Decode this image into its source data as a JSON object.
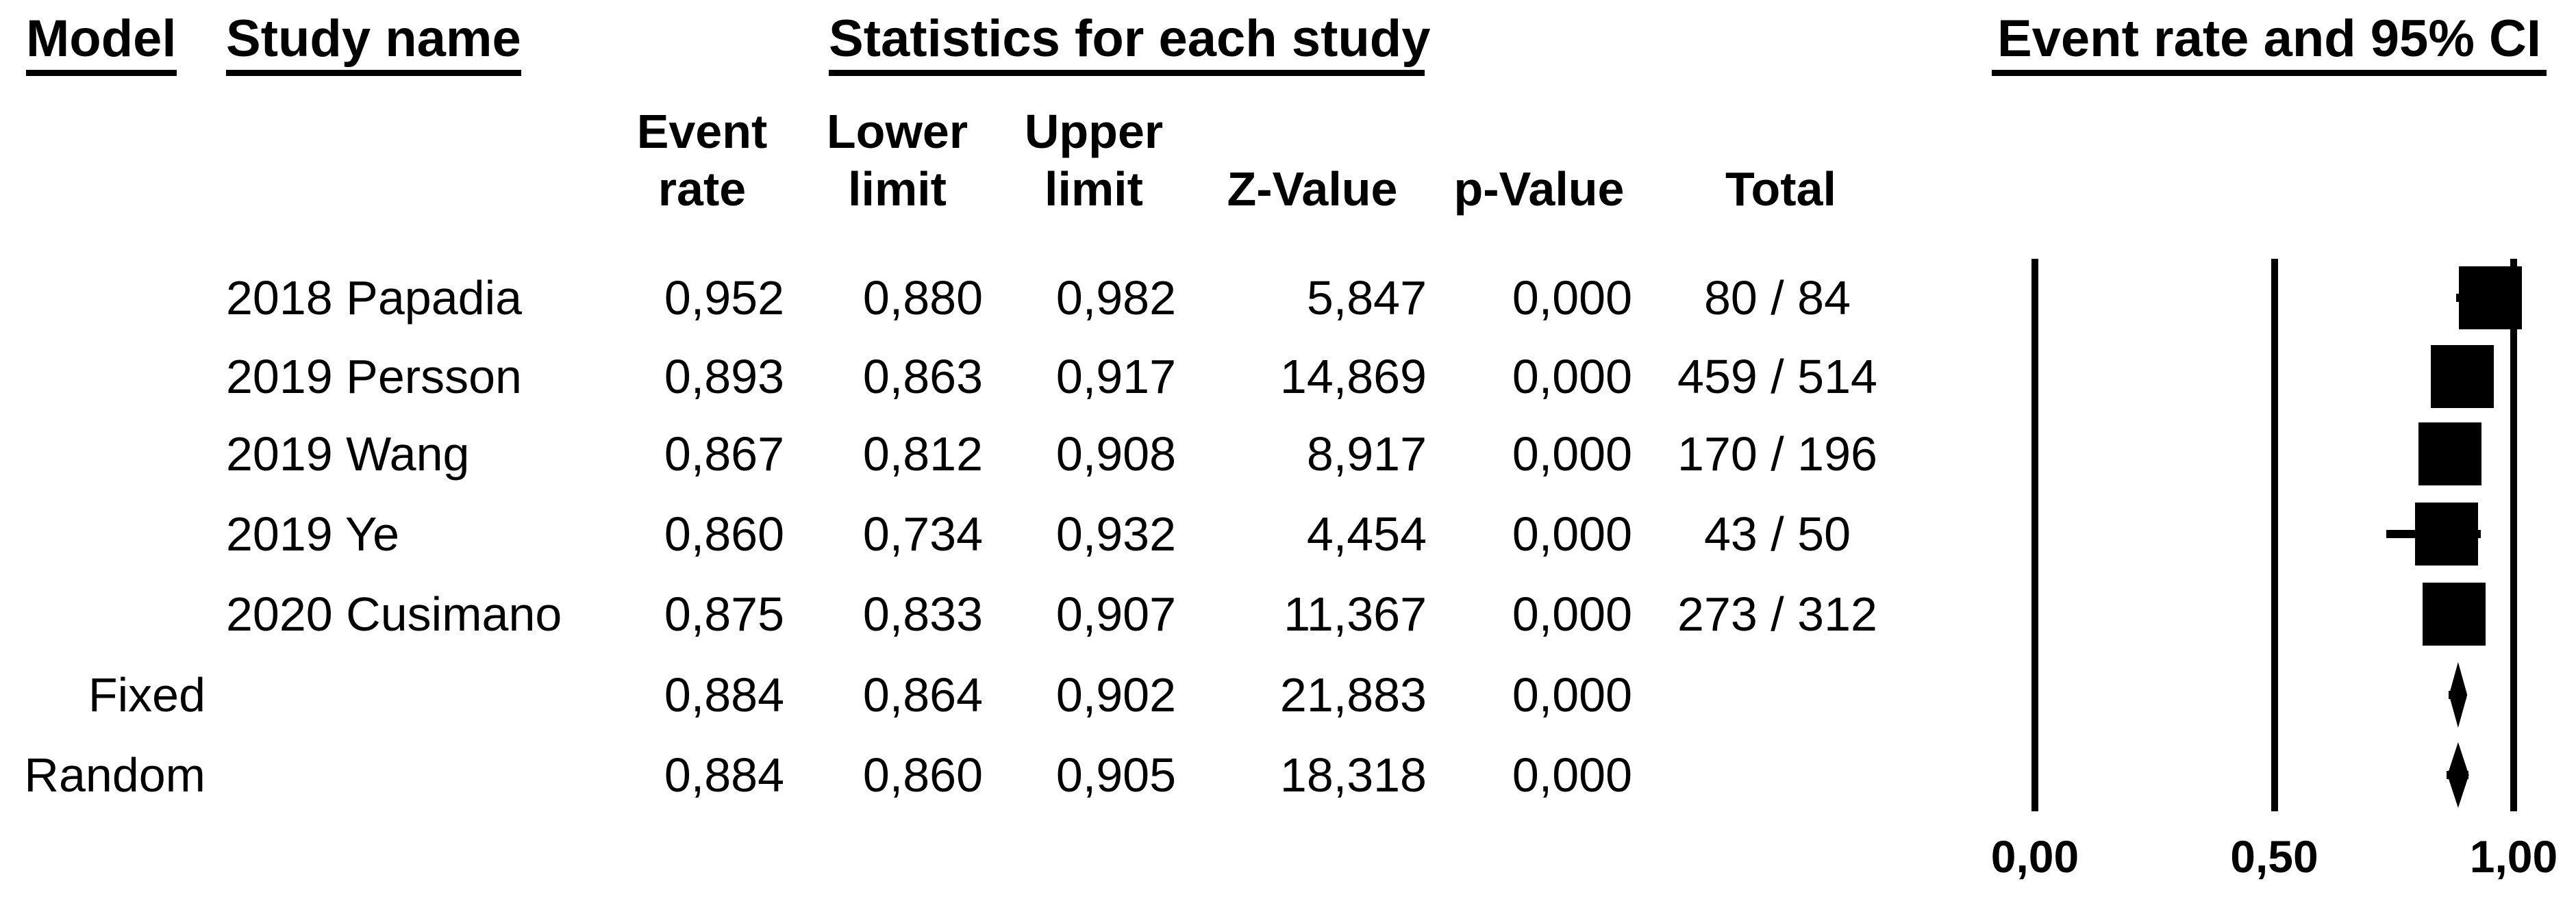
{
  "header": {
    "model": "Model",
    "study_name": "Study name",
    "statistics": "Statistics for each study",
    "event_rate_ci": "Event rate and 95% CI"
  },
  "columns": {
    "event_line1": "Event",
    "event_line2": "rate",
    "lower_line1": "Lower",
    "lower_line2": "limit",
    "upper_line1": "Upper",
    "upper_line2": "limit",
    "z_value": "Z-Value",
    "p_value": "p-Value",
    "total": "Total"
  },
  "rows": [
    {
      "model": "",
      "study": "2018 Papadia",
      "event_rate": "0,952",
      "lower": "0,880",
      "upper": "0,982",
      "z": "5,847",
      "p": "0,000",
      "total": "80 / 84"
    },
    {
      "model": "",
      "study": "2019 Persson",
      "event_rate": "0,893",
      "lower": "0,863",
      "upper": "0,917",
      "z": "14,869",
      "p": "0,000",
      "total": "459 / 514"
    },
    {
      "model": "",
      "study": "2019 Wang",
      "event_rate": "0,867",
      "lower": "0,812",
      "upper": "0,908",
      "z": "8,917",
      "p": "0,000",
      "total": "170 / 196"
    },
    {
      "model": "",
      "study": "2019 Ye",
      "event_rate": "0,860",
      "lower": "0,734",
      "upper": "0,932",
      "z": "4,454",
      "p": "0,000",
      "total": "43 / 50"
    },
    {
      "model": "",
      "study": "2020 Cusimano",
      "event_rate": "0,875",
      "lower": "0,833",
      "upper": "0,907",
      "z": "11,367",
      "p": "0,000",
      "total": "273 / 312"
    },
    {
      "model": "Fixed",
      "study": "",
      "event_rate": "0,884",
      "lower": "0,864",
      "upper": "0,902",
      "z": "21,883",
      "p": "0,000",
      "total": ""
    },
    {
      "model": "Random",
      "study": "",
      "event_rate": "0,884",
      "lower": "0,860",
      "upper": "0,905",
      "z": "18,318",
      "p": "0,000",
      "total": ""
    }
  ],
  "chart_data": {
    "type": "forest",
    "title": "Event rate and 95% CI",
    "x_axis": {
      "min": 0,
      "max": 1,
      "ticks": [
        0,
        0.5,
        1
      ],
      "tick_labels": [
        "0,00",
        "0,50",
        "1,00"
      ],
      "grid": "three vertical reference lines",
      "decimal_separator": "comma"
    },
    "studies": [
      {
        "label": "2018 Papadia",
        "event_rate": 0.952,
        "lower": 0.88,
        "upper": 0.982,
        "z": 5.847,
        "p": 0.0,
        "events": 80,
        "n": 84,
        "marker": "square"
      },
      {
        "label": "2019 Persson",
        "event_rate": 0.893,
        "lower": 0.863,
        "upper": 0.917,
        "z": 14.869,
        "p": 0.0,
        "events": 459,
        "n": 514,
        "marker": "square"
      },
      {
        "label": "2019 Wang",
        "event_rate": 0.867,
        "lower": 0.812,
        "upper": 0.908,
        "z": 8.917,
        "p": 0.0,
        "events": 170,
        "n": 196,
        "marker": "square"
      },
      {
        "label": "2019 Ye",
        "event_rate": 0.86,
        "lower": 0.734,
        "upper": 0.932,
        "z": 4.454,
        "p": 0.0,
        "events": 43,
        "n": 50,
        "marker": "square"
      },
      {
        "label": "2020 Cusimano",
        "event_rate": 0.875,
        "lower": 0.833,
        "upper": 0.907,
        "z": 11.367,
        "p": 0.0,
        "events": 273,
        "n": 312,
        "marker": "square"
      },
      {
        "label": "Fixed",
        "event_rate": 0.884,
        "lower": 0.864,
        "upper": 0.902,
        "z": 21.883,
        "p": 0.0,
        "marker": "diamond"
      },
      {
        "label": "Random",
        "event_rate": 0.884,
        "lower": 0.86,
        "upper": 0.905,
        "z": 18.318,
        "p": 0.0,
        "marker": "diamond"
      }
    ],
    "marker_color": "#000000",
    "background": "#ffffff"
  }
}
